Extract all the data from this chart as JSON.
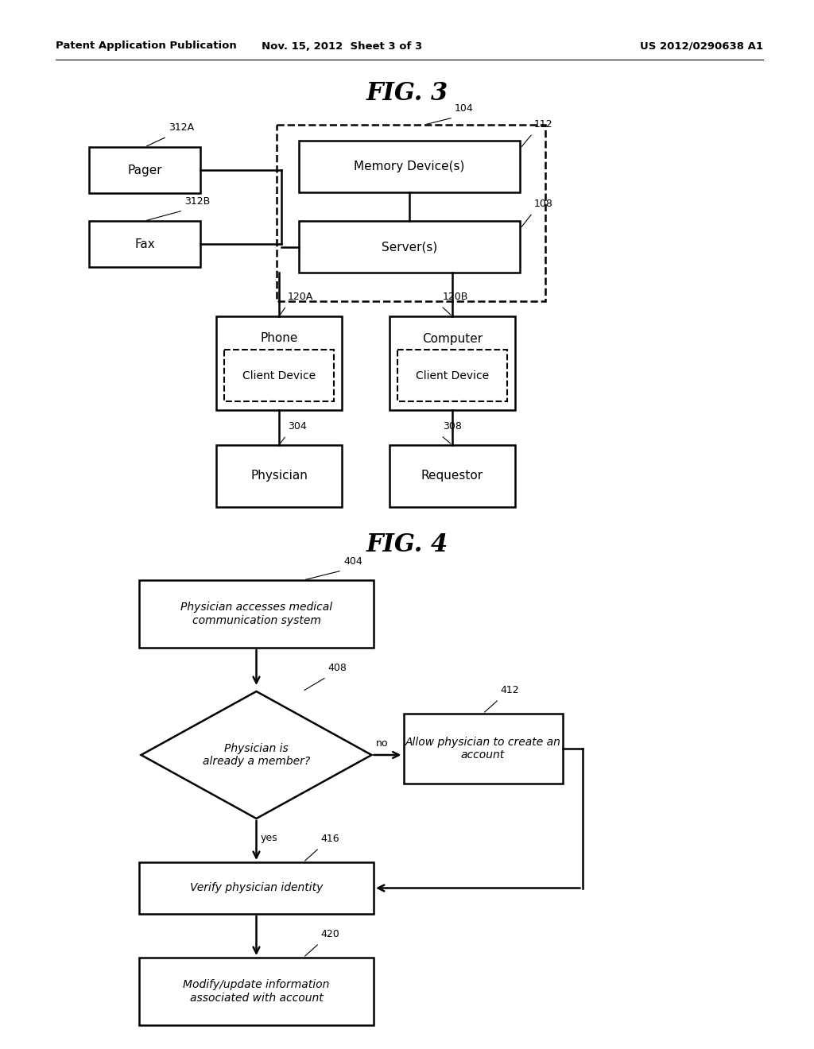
{
  "bg_color": "#ffffff",
  "header_left": "Patent Application Publication",
  "header_mid": "Nov. 15, 2012  Sheet 3 of 3",
  "header_right": "US 2012/0290638 A1",
  "fig3_title": "FIG. 3",
  "fig4_title": "FIG. 4"
}
